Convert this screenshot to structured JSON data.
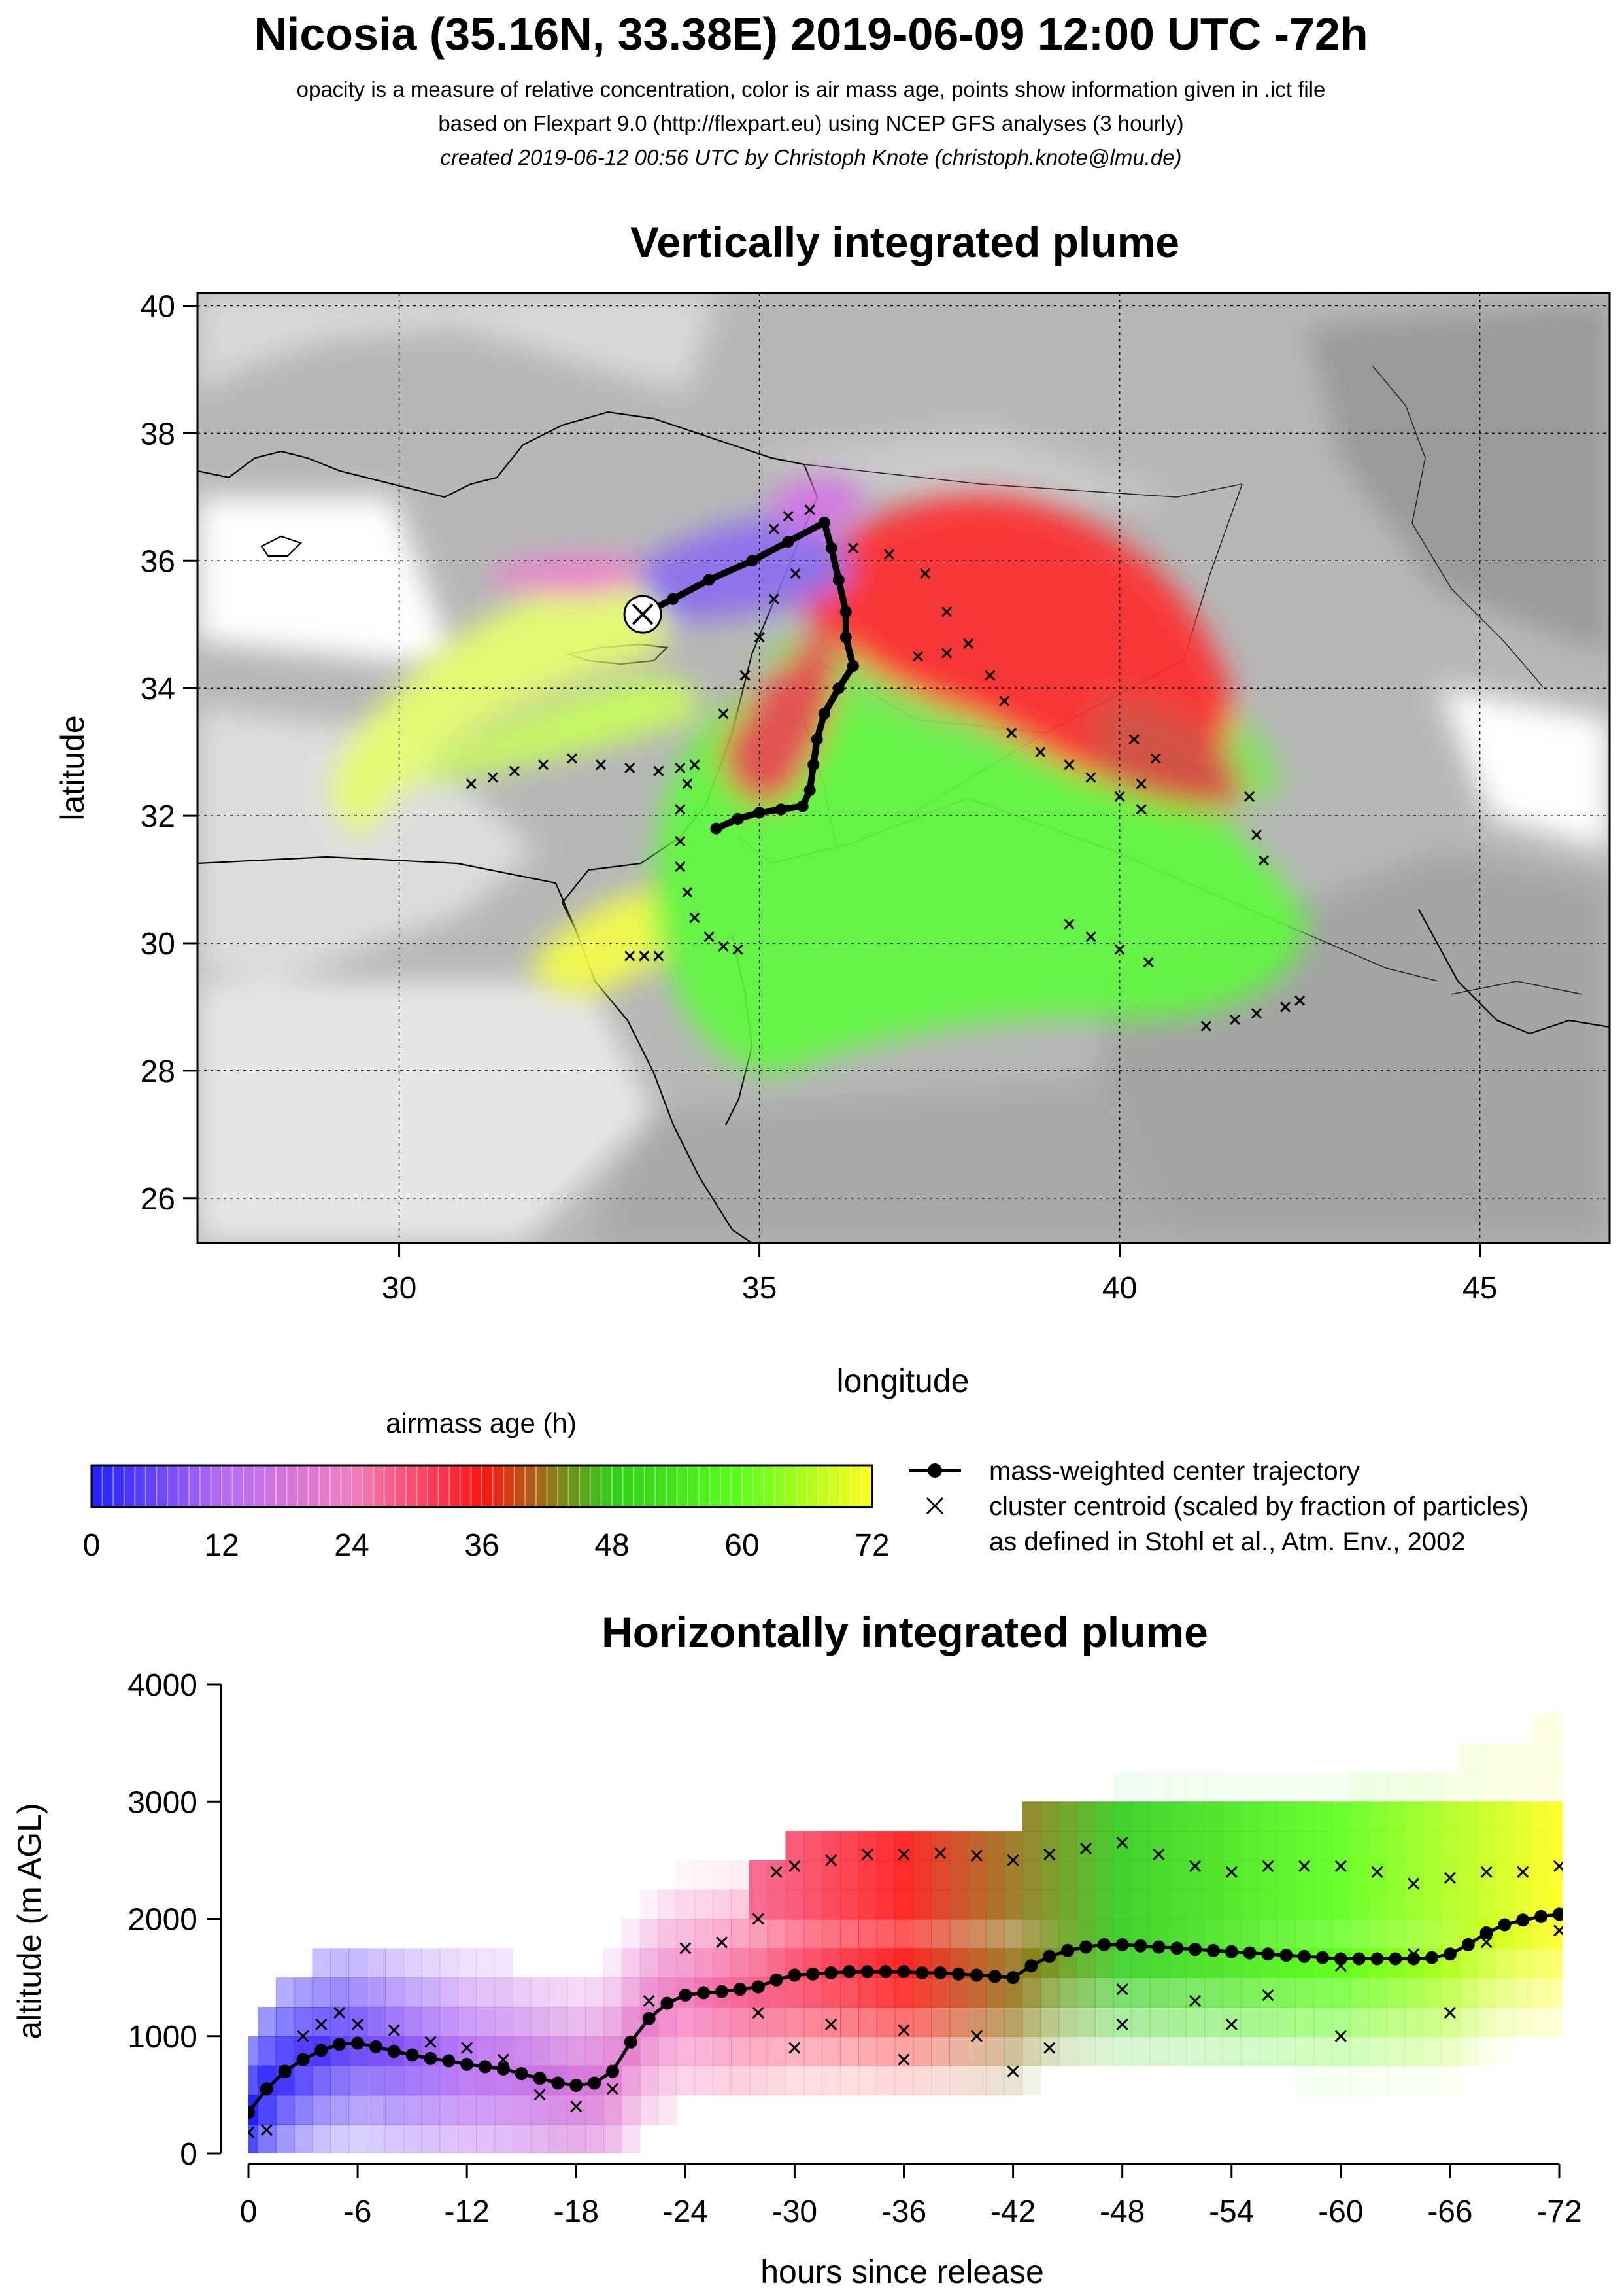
{
  "header": {
    "title": "Nicosia (35.16N, 33.38E) 2019-06-09 12:00 UTC -72h",
    "line1": "opacity is a measure of relative concentration, color is air mass age, points show information given in .ict file",
    "line2": "based on Flexpart 9.0 (http://flexpart.eu) using NCEP GFS analyses (3 hourly)",
    "line3": "created 2019-06-12 00:56 UTC by Christoph Knote (christoph.knote@lmu.de)"
  },
  "map_panel": {
    "title": "Vertically integrated plume",
    "xlabel": "longitude",
    "ylabel": "latitude",
    "xticks": [
      30,
      35,
      40,
      45
    ],
    "yticks": [
      26,
      28,
      30,
      32,
      34,
      36,
      38,
      40
    ],
    "xlim": [
      27.2,
      46.8
    ],
    "ylim": [
      25.3,
      40.2
    ],
    "station": {
      "name": "Nicosia",
      "lon": 33.38,
      "lat": 35.16
    },
    "colors": {
      "background_gray": "#b4b4b4",
      "land_light": "#dcdcdc",
      "sea": "#ffffff"
    }
  },
  "colorbar": {
    "title": "airmass age (h)",
    "ticks": [
      0,
      12,
      24,
      36,
      48,
      60,
      72
    ],
    "stops": [
      {
        "h": 0,
        "color": "#1f1fff"
      },
      {
        "h": 12,
        "color": "#b56cf5"
      },
      {
        "h": 24,
        "color": "#f27fc0"
      },
      {
        "h": 36,
        "color": "#ff1515"
      },
      {
        "h": 48,
        "color": "#2fce1a"
      },
      {
        "h": 60,
        "color": "#5cff1a"
      },
      {
        "h": 72,
        "color": "#ffff1a"
      }
    ]
  },
  "legend": {
    "items": [
      {
        "symbol": "line-dot",
        "label": "mass-weighted center trajectory"
      },
      {
        "symbol": "cross",
        "label": "cluster centroid (scaled by fraction of particles)"
      },
      {
        "symbol": "none",
        "label": "as defined in Stohl et al., Atm. Env., 2002"
      }
    ]
  },
  "chart_data": [
    {
      "type": "scatter",
      "title": "Vertically integrated plume",
      "xlabel": "longitude",
      "ylabel": "latitude",
      "xlim": [
        27.2,
        46.8
      ],
      "ylim": [
        25.3,
        40.2
      ],
      "grid": true,
      "series": [
        {
          "name": "mass-weighted center trajectory",
          "points": [
            [
              33.38,
              35.16
            ],
            [
              33.8,
              35.4
            ],
            [
              34.3,
              35.7
            ],
            [
              34.9,
              36.0
            ],
            [
              35.4,
              36.3
            ],
            [
              35.9,
              36.6
            ],
            [
              36.0,
              36.2
            ],
            [
              36.1,
              35.7
            ],
            [
              36.2,
              35.2
            ],
            [
              36.2,
              34.8
            ],
            [
              36.3,
              34.35
            ],
            [
              36.1,
              34.0
            ],
            [
              35.9,
              33.6
            ],
            [
              35.8,
              33.2
            ],
            [
              35.75,
              32.8
            ],
            [
              35.7,
              32.4
            ],
            [
              35.6,
              32.15
            ],
            [
              35.3,
              32.1
            ],
            [
              35.0,
              32.05
            ],
            [
              34.7,
              31.95
            ],
            [
              34.4,
              31.8
            ]
          ]
        },
        {
          "name": "cluster centroid (scaled by fraction of particles)",
          "points": [
            [
              31.0,
              32.5
            ],
            [
              31.3,
              32.6
            ],
            [
              31.6,
              32.7
            ],
            [
              32.0,
              32.8
            ],
            [
              32.4,
              32.9
            ],
            [
              32.8,
              32.8
            ],
            [
              33.2,
              32.75
            ],
            [
              33.6,
              32.7
            ],
            [
              33.9,
              32.75
            ],
            [
              34.1,
              32.8
            ],
            [
              33.2,
              29.8
            ],
            [
              33.4,
              29.8
            ],
            [
              33.6,
              29.8
            ],
            [
              34.0,
              32.5
            ],
            [
              33.9,
              32.1
            ],
            [
              33.9,
              31.6
            ],
            [
              33.9,
              31.2
            ],
            [
              34.0,
              30.8
            ],
            [
              34.1,
              30.4
            ],
            [
              34.3,
              30.1
            ],
            [
              34.5,
              29.95
            ],
            [
              34.7,
              29.9
            ],
            [
              34.5,
              33.6
            ],
            [
              34.8,
              34.2
            ],
            [
              35.0,
              34.8
            ],
            [
              35.2,
              35.4
            ],
            [
              35.5,
              35.8
            ],
            [
              35.2,
              36.5
            ],
            [
              35.4,
              36.7
            ],
            [
              35.7,
              36.8
            ],
            [
              36.3,
              36.2
            ],
            [
              36.8,
              36.1
            ],
            [
              37.3,
              35.8
            ],
            [
              37.6,
              35.2
            ],
            [
              37.9,
              34.7
            ],
            [
              37.6,
              34.55
            ],
            [
              37.2,
              34.5
            ],
            [
              38.2,
              34.2
            ],
            [
              38.4,
              33.8
            ],
            [
              38.5,
              33.3
            ],
            [
              38.9,
              33.0
            ],
            [
              39.3,
              32.8
            ],
            [
              39.6,
              32.6
            ],
            [
              40.2,
              33.2
            ],
            [
              40.5,
              32.9
            ],
            [
              40.3,
              32.5
            ],
            [
              40.0,
              32.3
            ],
            [
              40.3,
              32.1
            ],
            [
              39.3,
              30.3
            ],
            [
              39.6,
              30.1
            ],
            [
              40.0,
              29.9
            ],
            [
              40.4,
              29.7
            ],
            [
              41.2,
              28.7
            ],
            [
              41.6,
              28.8
            ],
            [
              41.9,
              28.9
            ],
            [
              42.3,
              29.0
            ],
            [
              42.5,
              29.1
            ],
            [
              41.8,
              32.3
            ],
            [
              41.9,
              31.7
            ],
            [
              42.0,
              31.3
            ]
          ]
        }
      ]
    },
    {
      "type": "scatter",
      "title": "Horizontally integrated plume",
      "xlabel": "hours since release",
      "ylabel": "altitude (m AGL)",
      "xticks": [
        0,
        -6,
        -12,
        -18,
        -24,
        -30,
        -36,
        -42,
        -48,
        -54,
        -60,
        -66,
        -72
      ],
      "yticks": [
        0,
        1000,
        2000,
        3000,
        4000
      ],
      "xlim": [
        0,
        -72
      ],
      "ylim": [
        0,
        4000
      ],
      "series": [
        {
          "name": "mass-weighted center trajectory",
          "x": [
            0,
            -1,
            -2,
            -3,
            -4,
            -5,
            -6,
            -7,
            -8,
            -9,
            -10,
            -11,
            -12,
            -13,
            -14,
            -15,
            -16,
            -17,
            -18,
            -19,
            -20,
            -21,
            -22,
            -23,
            -24,
            -25,
            -26,
            -27,
            -28,
            -29,
            -30,
            -31,
            -32,
            -33,
            -34,
            -35,
            -36,
            -37,
            -38,
            -39,
            -40,
            -41,
            -42,
            -43,
            -44,
            -45,
            -46,
            -47,
            -48,
            -49,
            -50,
            -51,
            -52,
            -53,
            -54,
            -55,
            -56,
            -57,
            -58,
            -59,
            -60,
            -61,
            -62,
            -63,
            -64,
            -65,
            -66,
            -67,
            -68,
            -69,
            -70,
            -71,
            -72
          ],
          "y": [
            350,
            550,
            700,
            800,
            880,
            930,
            940,
            910,
            870,
            840,
            810,
            790,
            760,
            740,
            720,
            680,
            640,
            600,
            580,
            600,
            700,
            950,
            1150,
            1280,
            1350,
            1370,
            1380,
            1400,
            1420,
            1480,
            1520,
            1530,
            1540,
            1550,
            1550,
            1550,
            1550,
            1540,
            1540,
            1530,
            1520,
            1510,
            1500,
            1600,
            1680,
            1730,
            1760,
            1780,
            1780,
            1770,
            1760,
            1750,
            1740,
            1730,
            1720,
            1710,
            1700,
            1690,
            1680,
            1670,
            1660,
            1660,
            1660,
            1660,
            1660,
            1670,
            1700,
            1780,
            1880,
            1950,
            1990,
            2020,
            2040
          ]
        },
        {
          "name": "cluster centroid (scaled by fraction of particles)",
          "x": [
            0,
            -1,
            -2,
            -3,
            -4,
            -5,
            -6,
            -8,
            -10,
            -12,
            -14,
            -16,
            -18,
            -20,
            -22,
            -24,
            -26,
            -28,
            -29,
            -30,
            -32,
            -34,
            -36,
            -38,
            -40,
            -42,
            -44,
            -46,
            -48,
            -50,
            -52,
            -54,
            -56,
            -58,
            -60,
            -62,
            -64,
            -66,
            -68,
            -70,
            -72,
            -28,
            -32,
            -36,
            -40,
            -44,
            -48,
            -52,
            -56,
            -60,
            -64,
            -68,
            -72,
            -30,
            -36,
            -42,
            -48,
            -54,
            -60,
            -66
          ],
          "y": [
            180,
            200,
            700,
            1000,
            1100,
            1200,
            1100,
            1050,
            950,
            900,
            800,
            500,
            400,
            550,
            1300,
            1750,
            1800,
            2000,
            2400,
            2450,
            2500,
            2550,
            2550,
            2560,
            2540,
            2500,
            2550,
            2600,
            2650,
            2550,
            2450,
            2400,
            2450,
            2450,
            2450,
            2400,
            2300,
            2350,
            2400,
            2400,
            2450,
            1200,
            1100,
            1050,
            1000,
            900,
            1100,
            1300,
            1350,
            1600,
            1700,
            1800,
            1900,
            900,
            800,
            700,
            1400,
            1100,
            1000,
            1200
          ]
        }
      ]
    }
  ]
}
